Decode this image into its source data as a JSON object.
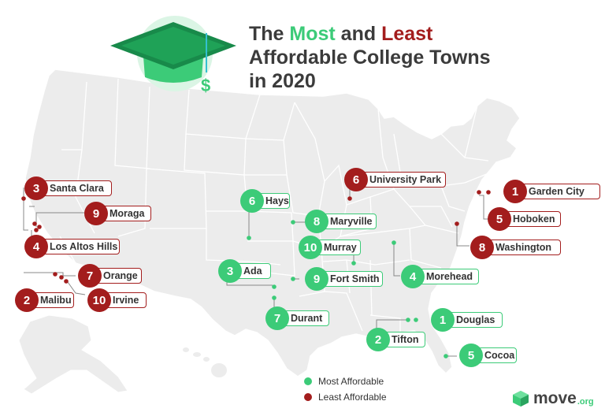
{
  "title": {
    "part1": "The ",
    "most": "Most",
    "part2": " and ",
    "least": "Least",
    "line2": "Affordable College Towns",
    "line3": "in 2020"
  },
  "colors": {
    "most": "#3ccb78",
    "least": "#a31d1d",
    "land": "#ececec",
    "border": "#ffffff"
  },
  "icons": {
    "cap": "graduation-cap-icon",
    "dollar": "dollar-sign-icon"
  },
  "least_affordable": [
    {
      "rank": "1",
      "name": "Garden City"
    },
    {
      "rank": "3",
      "name": "Santa Clara"
    },
    {
      "rank": "9",
      "name": "Moraga"
    },
    {
      "rank": "4",
      "name": "Los Altos Hills"
    },
    {
      "rank": "7",
      "name": "Orange"
    },
    {
      "rank": "2",
      "name": "Malibu"
    },
    {
      "rank": "10",
      "name": "Irvine"
    },
    {
      "rank": "6",
      "name": "University Park"
    },
    {
      "rank": "5",
      "name": "Hoboken"
    },
    {
      "rank": "8",
      "name": "Washington"
    }
  ],
  "most_affordable": [
    {
      "rank": "6",
      "name": "Hays"
    },
    {
      "rank": "8",
      "name": "Maryville"
    },
    {
      "rank": "10",
      "name": "Murray"
    },
    {
      "rank": "3",
      "name": "Ada"
    },
    {
      "rank": "9",
      "name": "Fort Smith"
    },
    {
      "rank": "4",
      "name": "Morehead"
    },
    {
      "rank": "7",
      "name": "Durant"
    },
    {
      "rank": "1",
      "name": "Douglas"
    },
    {
      "rank": "2",
      "name": "Tifton"
    },
    {
      "rank": "5",
      "name": "Cocoa"
    }
  ],
  "legend": {
    "most": "Most Affordable",
    "least": "Least Affordable"
  },
  "brand": {
    "name": "move",
    "suffix": ".org"
  }
}
